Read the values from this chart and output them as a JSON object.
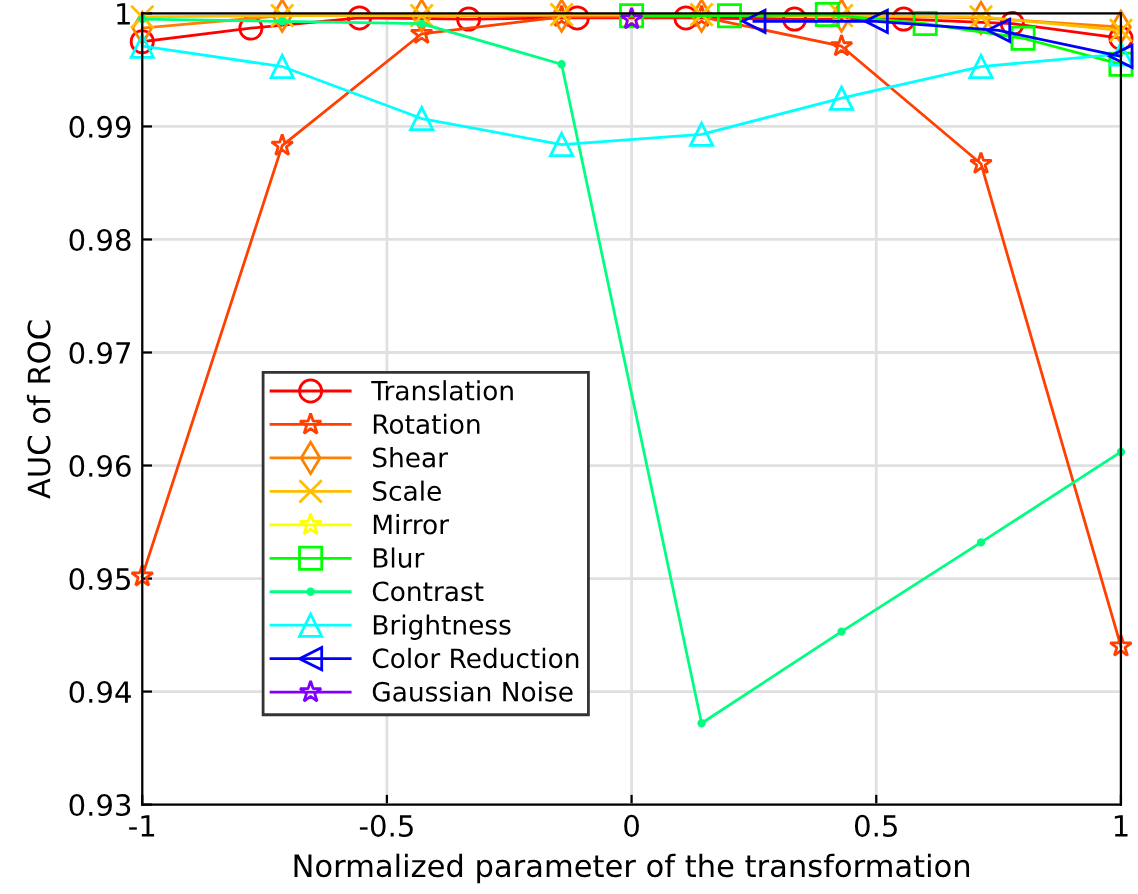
{
  "chart_data": {
    "type": "line",
    "xlabel": "Normalized parameter of the transformation",
    "ylabel": "AUC of ROC",
    "xlim": [
      -1,
      1
    ],
    "ylim": [
      0.93,
      1
    ],
    "xticks": [
      -1,
      -0.5,
      0,
      0.5,
      1
    ],
    "yticks": [
      0.93,
      0.94,
      0.95,
      0.96,
      0.97,
      0.98,
      0.99,
      1
    ],
    "grid": true,
    "legend": "left",
    "line_style": "solid",
    "series": [
      {
        "name": "Translation",
        "color": "#ff0000",
        "marker": "circle",
        "x": [
          -1,
          -0.778,
          -0.556,
          -0.333,
          -0.111,
          0.111,
          0.333,
          0.556,
          0.778,
          1
        ],
        "values": [
          0.9975,
          0.9987,
          0.9996,
          0.9995,
          0.9996,
          0.9996,
          0.9995,
          0.9995,
          0.9991,
          0.9978
        ]
      },
      {
        "name": "Rotation",
        "color": "#ff4000",
        "marker": "asterisk",
        "x": [
          -1,
          -0.714,
          -0.429,
          -0.143,
          0.143,
          0.429,
          0.714,
          1
        ],
        "values": [
          0.9502,
          0.9883,
          0.9982,
          0.9997,
          0.9997,
          0.9971,
          0.9867,
          0.944
        ]
      },
      {
        "name": "Shear",
        "color": "#ff8000",
        "marker": "diamond",
        "x": [
          -1,
          -0.714,
          -0.429,
          -0.143,
          0.143,
          0.429,
          0.714,
          1
        ],
        "values": [
          0.9987,
          0.9998,
          0.9998,
          0.9998,
          0.9998,
          0.9998,
          0.9996,
          0.9988
        ]
      },
      {
        "name": "Scale",
        "color": "#ffbf00",
        "marker": "cross",
        "x": [
          -1,
          -0.714,
          -0.429,
          -0.143,
          0.143,
          0.429,
          0.714,
          1
        ],
        "values": [
          0.9997,
          0.9998,
          0.9998,
          0.9999,
          0.9999,
          0.9998,
          0.9997,
          0.9985
        ]
      },
      {
        "name": "Mirror",
        "color": "#ffff00",
        "marker": "star",
        "x": [
          0
        ],
        "values": [
          0.9996
        ]
      },
      {
        "name": "Blur",
        "color": "#00ff00",
        "marker": "square",
        "x": [
          0,
          0.2,
          0.4,
          0.6,
          0.8,
          1
        ],
        "values": [
          0.9998,
          0.9998,
          0.9999,
          0.9991,
          0.9978,
          0.9955
        ]
      },
      {
        "name": "Contrast",
        "color": "#00ff80",
        "marker": "point",
        "x": [
          -1,
          -0.714,
          -0.429,
          -0.143,
          0.143,
          0.429,
          0.714,
          1
        ],
        "values": [
          0.9995,
          0.9993,
          0.9991,
          0.9955,
          0.9372,
          0.9453,
          0.9532,
          0.9612
        ]
      },
      {
        "name": "Brightness",
        "color": "#00ffff",
        "marker": "triangle",
        "x": [
          -1,
          -0.714,
          -0.429,
          -0.143,
          0.143,
          0.429,
          0.714,
          1
        ],
        "values": [
          0.9971,
          0.9953,
          0.9907,
          0.9884,
          0.9893,
          0.9925,
          0.9953,
          0.9964
        ]
      },
      {
        "name": "Color Reduction",
        "color": "#0000ff",
        "marker": "triangle-left",
        "x": [
          0.25,
          0.5,
          0.75,
          1
        ],
        "values": [
          0.9993,
          0.9993,
          0.9985,
          0.9962
        ]
      },
      {
        "name": "Gaussian Noise",
        "color": "#8000ff",
        "marker": "star",
        "x": [
          0
        ],
        "values": [
          0.9995
        ]
      }
    ]
  }
}
